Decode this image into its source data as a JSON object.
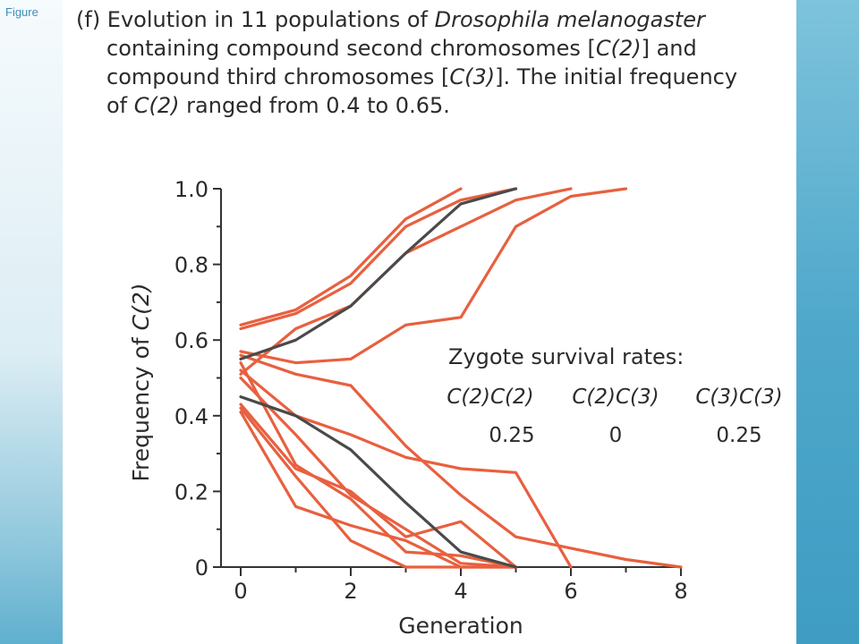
{
  "figure_label": "Figure",
  "caption": {
    "prefix": "(f) Evolution in 11 populations of ",
    "species": "Drosophila melanogaster",
    "line2_a": "containing compound second chromosomes [",
    "c2": "C(2)",
    "line2_b": "] and",
    "line3_a": "compound third chromosomes [",
    "c3": "C(3)",
    "line3_b": "]. The initial frequency",
    "line4_a": "of ",
    "line4_b": " ranged from 0.4 to 0.65."
  },
  "legend_box": {
    "heading": "Zygote survival rates:",
    "columns": [
      "C(2)C(2)",
      "C(2)C(3)",
      "C(3)C(3)"
    ],
    "values": [
      "0.25",
      "0",
      "0.25"
    ]
  },
  "colors": {
    "observed": "#e8603f",
    "predicted": "#4a4a4a",
    "axis": "#333333"
  },
  "chart_data": {
    "type": "line",
    "xlabel": "Generation",
    "ylabel_prefix": "Frequency of ",
    "ylabel_var": "C(2)",
    "xlim": [
      0,
      8
    ],
    "ylim": [
      0,
      1.0
    ],
    "x_ticks": [
      0,
      2,
      4,
      6,
      8
    ],
    "y_ticks": [
      {
        "value": 0,
        "label": "0"
      },
      {
        "value": 0.2,
        "label": "0.2"
      },
      {
        "value": 0.4,
        "label": "0.4"
      },
      {
        "value": 0.6,
        "label": "0.6"
      },
      {
        "value": 0.8,
        "label": "0.8"
      },
      {
        "value": 1.0,
        "label": "1.0"
      }
    ],
    "series": [
      {
        "color": "predicted",
        "x": [
          0,
          1,
          2,
          3,
          4,
          5
        ],
        "y": [
          0.55,
          0.6,
          0.69,
          0.83,
          0.96,
          1.0
        ]
      },
      {
        "color": "predicted",
        "x": [
          0,
          1,
          2,
          3,
          4,
          5
        ],
        "y": [
          0.45,
          0.4,
          0.31,
          0.17,
          0.04,
          0.0
        ]
      },
      {
        "color": "observed",
        "x": [
          0,
          1,
          2,
          3,
          4
        ],
        "y": [
          0.64,
          0.68,
          0.77,
          0.92,
          1.0
        ]
      },
      {
        "color": "observed",
        "x": [
          0,
          1,
          2,
          3,
          4,
          5
        ],
        "y": [
          0.63,
          0.67,
          0.75,
          0.9,
          0.97,
          1.0
        ]
      },
      {
        "color": "observed",
        "x": [
          0,
          1,
          2,
          3,
          4,
          5,
          6
        ],
        "y": [
          0.51,
          0.63,
          0.69,
          0.83,
          0.9,
          0.97,
          1.0
        ]
      },
      {
        "color": "observed",
        "x": [
          0,
          1,
          2,
          3,
          4,
          5,
          6,
          7
        ],
        "y": [
          0.57,
          0.54,
          0.55,
          0.64,
          0.66,
          0.9,
          0.98,
          1.0
        ]
      },
      {
        "color": "observed",
        "x": [
          0,
          1,
          2,
          3,
          4,
          5,
          6,
          7,
          8
        ],
        "y": [
          0.56,
          0.51,
          0.48,
          0.32,
          0.19,
          0.08,
          0.05,
          0.02,
          0.0
        ]
      },
      {
        "color": "observed",
        "x": [
          0,
          1,
          2,
          3,
          4,
          5,
          6
        ],
        "y": [
          0.52,
          0.4,
          0.35,
          0.29,
          0.26,
          0.25,
          0.0
        ]
      },
      {
        "color": "observed",
        "x": [
          0,
          1,
          2,
          3,
          4,
          5
        ],
        "y": [
          0.5,
          0.35,
          0.19,
          0.1,
          0.01,
          0.0
        ]
      },
      {
        "color": "observed",
        "x": [
          0,
          1,
          2,
          3,
          4,
          5
        ],
        "y": [
          0.43,
          0.26,
          0.2,
          0.08,
          0.12,
          0.0
        ]
      },
      {
        "color": "observed",
        "x": [
          0,
          1,
          2,
          3,
          4,
          5
        ],
        "y": [
          0.41,
          0.16,
          0.11,
          0.07,
          0.0,
          0.0
        ]
      },
      {
        "color": "observed",
        "x": [
          0,
          1,
          2,
          3,
          4,
          5
        ],
        "y": [
          0.42,
          0.24,
          0.07,
          0.0,
          0.0,
          0.0
        ]
      },
      {
        "color": "observed",
        "x": [
          0,
          1,
          2,
          3,
          4,
          5
        ],
        "y": [
          0.54,
          0.27,
          0.18,
          0.04,
          0.03,
          0.0
        ]
      }
    ]
  }
}
